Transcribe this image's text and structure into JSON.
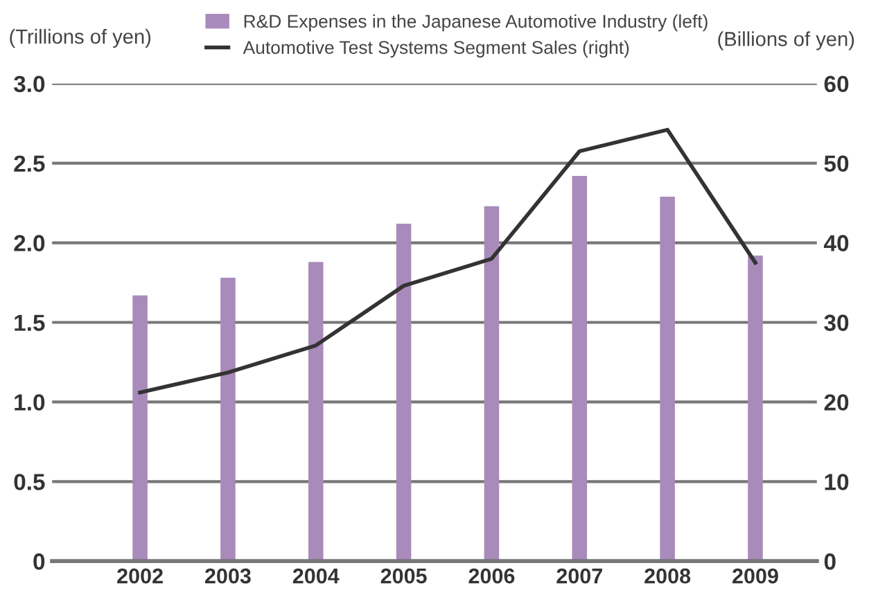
{
  "chart_data": {
    "type": "bar",
    "categories": [
      "2002",
      "2003",
      "2004",
      "2005",
      "2006",
      "2007",
      "2008",
      "2009"
    ],
    "series": [
      {
        "name": "R&D Expenses in the Japanese Automotive Industry (left)",
        "color": "#a98bbb",
        "values": [
          1.67,
          1.78,
          1.88,
          2.12,
          2.23,
          2.42,
          2.29,
          1.92
        ]
      },
      {
        "name": "Automotive Test Systems Segment Sales (right)",
        "type": "line",
        "axis": "y2",
        "color": "#333333",
        "values": [
          21.2,
          23.7,
          27.1,
          34.6,
          38.0,
          51.5,
          54.2,
          37.5
        ]
      }
    ],
    "ylabel": "(Trillions of yen)",
    "y2label": "(Billions of yen)",
    "ylim": [
      0,
      3.0
    ],
    "yticks": [
      {
        "value": 0,
        "label": "0"
      },
      {
        "value": 0.5,
        "label": "0.5"
      },
      {
        "value": 1.0,
        "label": "1.0"
      },
      {
        "value": 1.5,
        "label": "1.5"
      },
      {
        "value": 2.0,
        "label": "2.0"
      },
      {
        "value": 2.5,
        "label": "2.5"
      },
      {
        "value": 3.0,
        "label": "3.0"
      }
    ],
    "y2lim": [
      0,
      60
    ],
    "y2ticks": [
      0,
      10,
      20,
      30,
      40,
      50,
      60
    ],
    "grid": "y",
    "legend": "top",
    "marker": "none",
    "line_style": "solid"
  }
}
